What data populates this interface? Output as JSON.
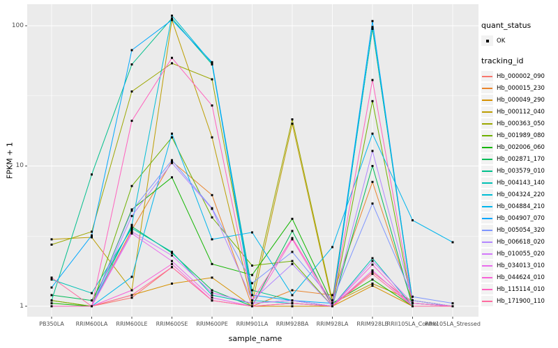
{
  "chart_data": {
    "type": "line",
    "title": "",
    "xlabel": "sample_name",
    "ylabel": "FPKM + 1",
    "y_scale": "log10",
    "ylim": [
      1,
      140
    ],
    "y_ticks": [
      1,
      10,
      100
    ],
    "y_minor_ticks": [
      3.162,
      31.623
    ],
    "grid": "on",
    "panel_bg": "#EBEBEB",
    "grid_color": "#FFFFFF",
    "marker_color": "#000000",
    "tick_label_color": "#4D4D4D",
    "legend_position": "right",
    "legend": {
      "quant_status_title": "quant_status",
      "quant_status_items": [
        {
          "label": "OK",
          "marker": "point",
          "color": "#000000"
        }
      ],
      "tracking_title": "tracking_id"
    },
    "categories": [
      "PB350LA",
      "RRIM600LA",
      "RRIM600LE",
      "RRIM600SE",
      "RRIM600PE",
      "RRIM901LA",
      "RRIM928BA",
      "RRIM928LA",
      "RRIM928LE",
      "RRII105LA_Control",
      "RRII105LA_Stressed"
    ],
    "series": [
      {
        "name": "Hb_000002_090",
        "color": "#F8766D",
        "values": [
          1.0,
          1.0,
          1.15,
          1.9,
          1.1,
          1.0,
          1.05,
          1.0,
          1.75,
          1.05,
          1.0
        ]
      },
      {
        "name": "Hb_000015_230",
        "color": "#E9842C",
        "values": [
          1.0,
          1.0,
          3.5,
          10.8,
          6.2,
          1.0,
          1.3,
          1.2,
          7.7,
          1.05,
          1.0
        ]
      },
      {
        "name": "Hb_000049_290",
        "color": "#D69100",
        "values": [
          1.1,
          1.0,
          1.2,
          1.45,
          1.6,
          1.0,
          1.0,
          1.0,
          1.4,
          1.0,
          1.0
        ]
      },
      {
        "name": "Hb_000112_040",
        "color": "#BC9D00",
        "values": [
          3.0,
          3.1,
          1.3,
          110,
          16,
          1.05,
          20,
          1.05,
          1.45,
          1.1,
          1.0
        ]
      },
      {
        "name": "Hb_000363_050",
        "color": "#9CA700",
        "values": [
          2.75,
          3.4,
          34,
          54,
          41.5,
          1.2,
          21.5,
          1.1,
          95,
          1.1,
          1.0
        ]
      },
      {
        "name": "Hb_001989_080",
        "color": "#6FB000",
        "values": [
          1.1,
          1.0,
          7.2,
          16,
          4.3,
          1.95,
          2.1,
          1.0,
          29,
          1.0,
          1.0
        ]
      },
      {
        "name": "Hb_002006_060",
        "color": "#13B600",
        "values": [
          1.05,
          1.0,
          4.9,
          8.3,
          2.0,
          1.67,
          4.2,
          1.05,
          1.55,
          1.0,
          1.0
        ]
      },
      {
        "name": "Hb_002871_170",
        "color": "#00BB57",
        "values": [
          1.2,
          1.1,
          3.7,
          2.4,
          1.3,
          1.0,
          3.44,
          1.0,
          10,
          1.0,
          1.0
        ]
      },
      {
        "name": "Hb_003579_010",
        "color": "#00BF8C",
        "values": [
          1.1,
          8.7,
          53,
          113,
          53,
          1.3,
          1.1,
          1.0,
          97,
          1.05,
          1.0
        ]
      },
      {
        "name": "Hb_004143_140",
        "color": "#00C0B4",
        "values": [
          1.55,
          1.24,
          3.6,
          2.44,
          1.2,
          1.05,
          1.1,
          1.0,
          2.2,
          1.0,
          1.0
        ]
      },
      {
        "name": "Hb_004324_220",
        "color": "#00BDD4",
        "values": [
          1.0,
          1.0,
          3.8,
          118,
          54,
          1.1,
          1.05,
          1.0,
          98,
          1.1,
          1.0
        ]
      },
      {
        "name": "Hb_004884_210",
        "color": "#00B5EC",
        "values": [
          1.0,
          1.0,
          1.62,
          17,
          3.0,
          3.36,
          1.2,
          2.64,
          17,
          4.1,
          2.86
        ]
      },
      {
        "name": "Hb_004907_070",
        "color": "#00A7FD",
        "values": [
          1.36,
          3.2,
          67,
          110,
          55,
          1.2,
          1.1,
          1.05,
          108,
          1.05,
          1.0
        ]
      },
      {
        "name": "Hb_005054_320",
        "color": "#7F96FF",
        "values": [
          1.0,
          1.0,
          4.8,
          11,
          5.0,
          1.46,
          2.44,
          1.1,
          5.4,
          1.17,
          1.05
        ]
      },
      {
        "name": "Hb_006618_020",
        "color": "#B287FF",
        "values": [
          1.0,
          1.0,
          4.4,
          10.5,
          4.95,
          1.1,
          2.0,
          1.0,
          12.8,
          1.1,
          1.0
        ]
      },
      {
        "name": "Hb_010055_020",
        "color": "#D377FB",
        "values": [
          1.0,
          1.0,
          3.4,
          2.3,
          1.25,
          1.05,
          1.1,
          1.0,
          2.1,
          1.05,
          1.0
        ]
      },
      {
        "name": "Hb_034013_010",
        "color": "#E96BEC",
        "values": [
          1.0,
          1.0,
          3.3,
          2.1,
          1.15,
          1.0,
          1.05,
          1.0,
          1.8,
          1.0,
          1.0
        ]
      },
      {
        "name": "Hb_044624_010",
        "color": "#F863D7",
        "values": [
          1.0,
          1.0,
          1.3,
          2.0,
          1.1,
          1.0,
          3.0,
          1.0,
          1.98,
          1.0,
          1.0
        ]
      },
      {
        "name": "Hb_115114_010",
        "color": "#FF62BE",
        "values": [
          1.0,
          1.0,
          21,
          59,
          27,
          1.1,
          3.06,
          1.05,
          41,
          1.05,
          1.0
        ]
      },
      {
        "name": "Hb_171900_110",
        "color": "#FF6B9F",
        "values": [
          1.6,
          1.0,
          1.2,
          1.9,
          1.1,
          1.0,
          1.05,
          1.0,
          1.7,
          1.0,
          1.0
        ]
      }
    ]
  }
}
